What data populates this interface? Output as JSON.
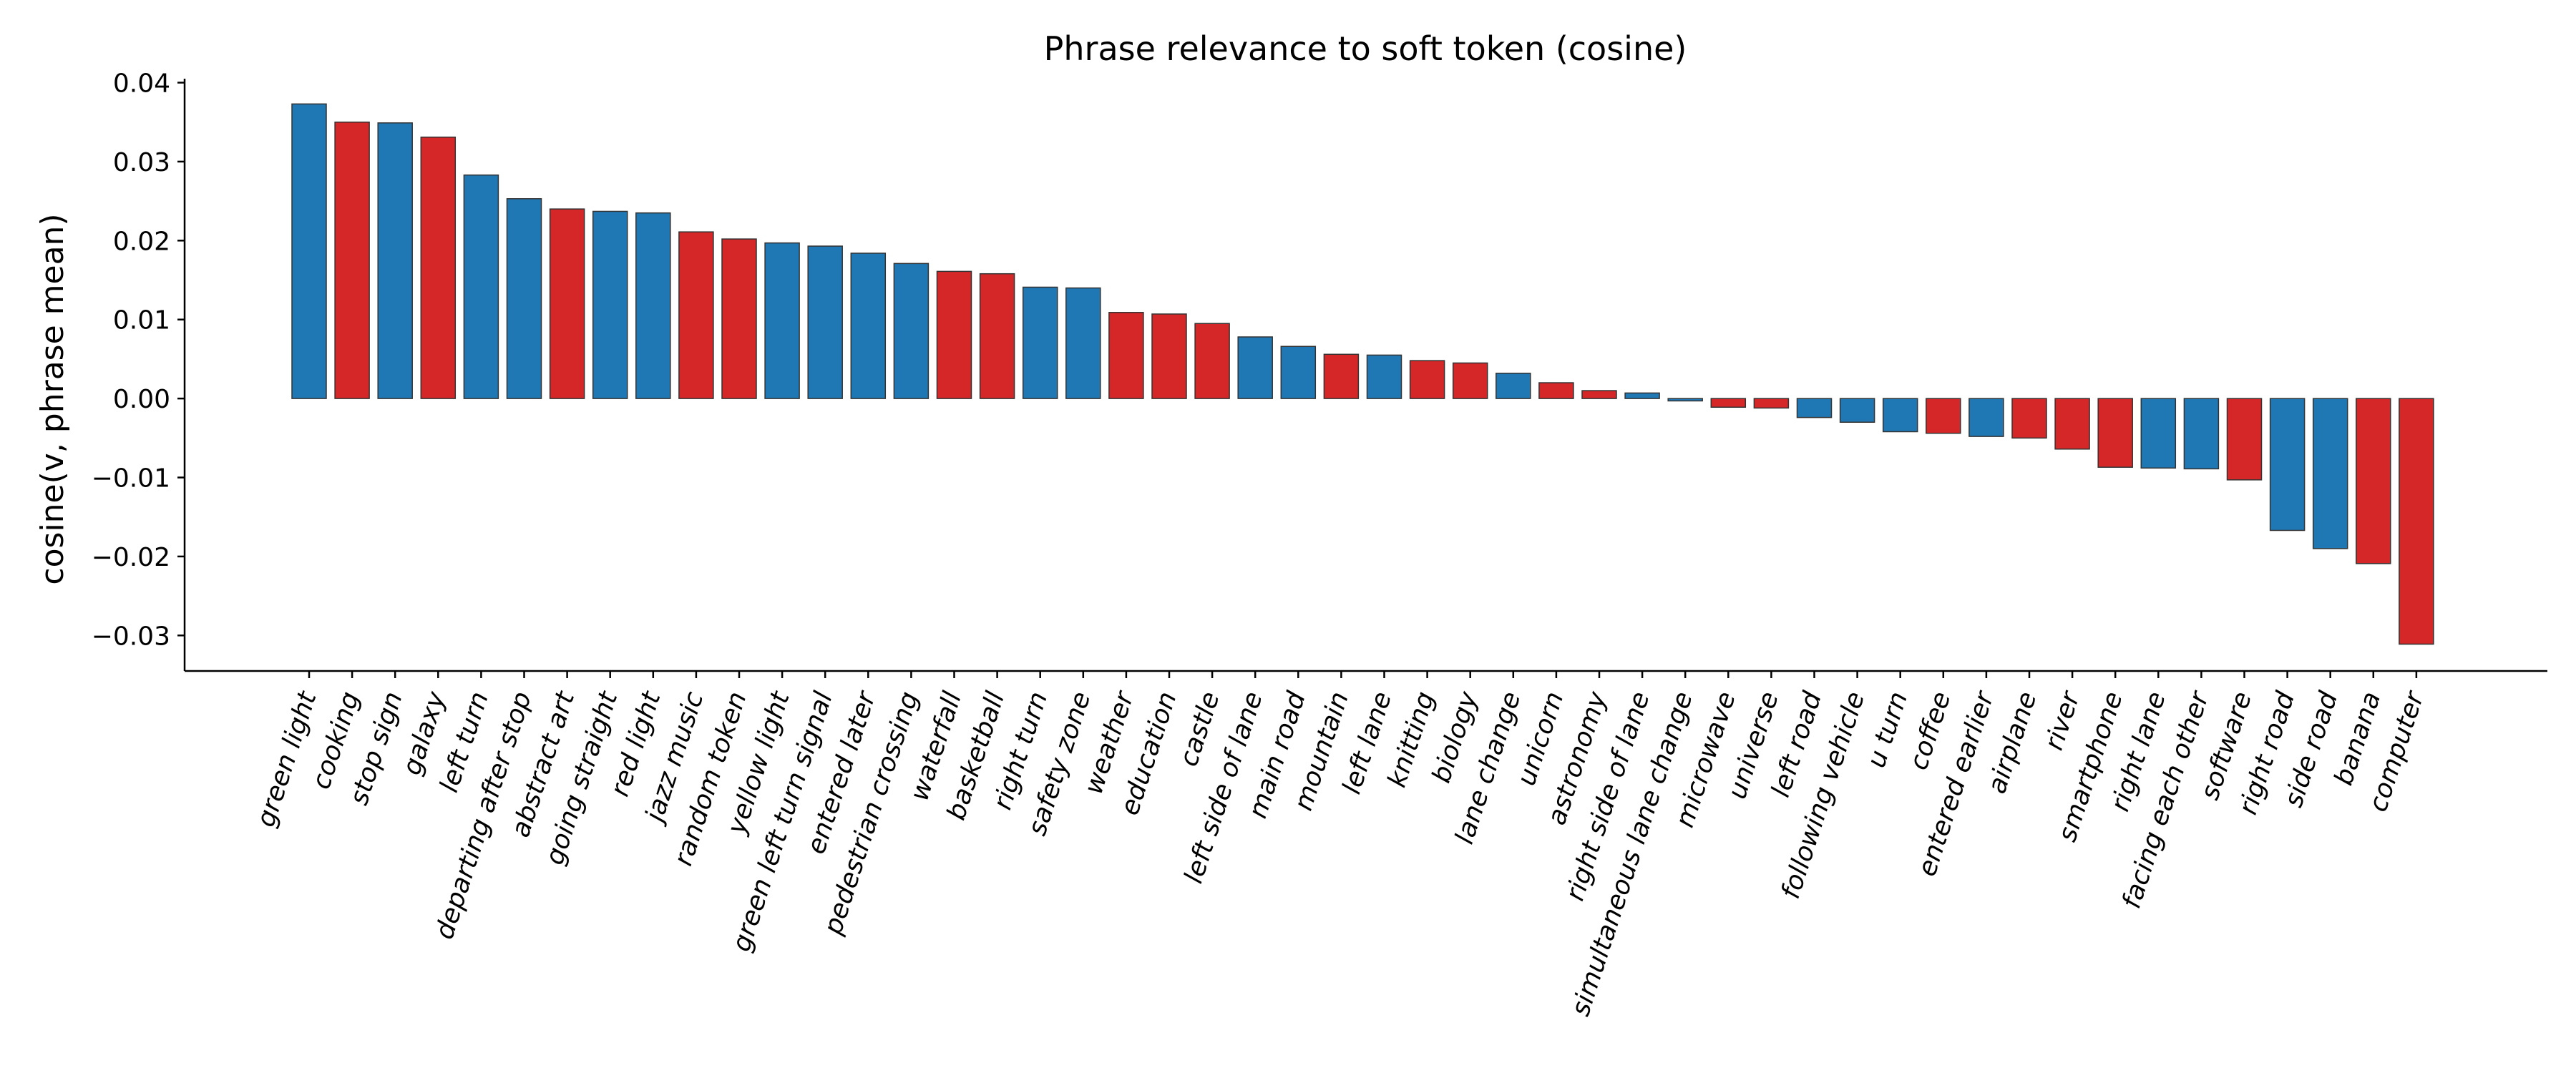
{
  "chart_data": {
    "type": "bar",
    "title": "Phrase relevance to soft token (cosine)",
    "xlabel": "",
    "ylabel": "cosine(v, phrase mean)",
    "ylim": [
      -0.0345,
      0.0405
    ],
    "yticks": [
      0.04,
      0.03,
      0.02,
      0.01,
      0.0,
      -0.01,
      -0.02,
      -0.03
    ],
    "ytick_labels": [
      "0.04",
      "0.03",
      "0.02",
      "0.01",
      "0.00",
      "−0.01",
      "−0.02",
      "−0.03"
    ],
    "grid": false,
    "colors": {
      "blue": "#1f77b4",
      "red": "#d62728"
    },
    "categories": [
      "green light",
      "cooking",
      "stop sign",
      "galaxy",
      "left turn",
      "departing after stop",
      "abstract art",
      "going straight",
      "red light",
      "jazz music",
      "random token",
      "yellow light",
      "green left turn signal",
      "entered later",
      "pedestrian crossing",
      "waterfall",
      "basketball",
      "right turn",
      "safety zone",
      "weather",
      "education",
      "castle",
      "left side of lane",
      "main road",
      "mountain",
      "left lane",
      "knitting",
      "biology",
      "lane change",
      "unicorn",
      "astronomy",
      "right side of lane",
      "simultaneous lane change",
      "microwave",
      "universe",
      "left road",
      "following vehicle",
      "u turn",
      "coffee",
      "entered earlier",
      "airplane",
      "river",
      "smartphone",
      "right lane",
      "facing each other",
      "software",
      "right road",
      "side road",
      "banana",
      "computer"
    ],
    "values": [
      0.0373,
      0.035,
      0.0349,
      0.0331,
      0.0283,
      0.0253,
      0.024,
      0.0237,
      0.0235,
      0.0211,
      0.0202,
      0.0197,
      0.0193,
      0.0184,
      0.0171,
      0.0161,
      0.0158,
      0.0141,
      0.014,
      0.0109,
      0.0107,
      0.0095,
      0.0078,
      0.0066,
      0.0056,
      0.0055,
      0.0048,
      0.0045,
      0.0032,
      0.002,
      0.001,
      0.0007,
      -0.0003,
      -0.0011,
      -0.0012,
      -0.0024,
      -0.003,
      -0.0042,
      -0.0044,
      -0.0048,
      -0.005,
      -0.0064,
      -0.0087,
      -0.0088,
      -0.0089,
      -0.0103,
      -0.0167,
      -0.019,
      -0.0209,
      -0.0311
    ],
    "bar_colors": [
      "blue",
      "red",
      "blue",
      "red",
      "blue",
      "blue",
      "red",
      "blue",
      "blue",
      "red",
      "red",
      "blue",
      "blue",
      "blue",
      "blue",
      "red",
      "red",
      "blue",
      "blue",
      "red",
      "red",
      "red",
      "blue",
      "blue",
      "red",
      "blue",
      "red",
      "red",
      "blue",
      "red",
      "red",
      "blue",
      "blue",
      "red",
      "red",
      "blue",
      "blue",
      "blue",
      "red",
      "blue",
      "red",
      "red",
      "red",
      "blue",
      "blue",
      "red",
      "blue",
      "blue",
      "red",
      "red"
    ]
  }
}
